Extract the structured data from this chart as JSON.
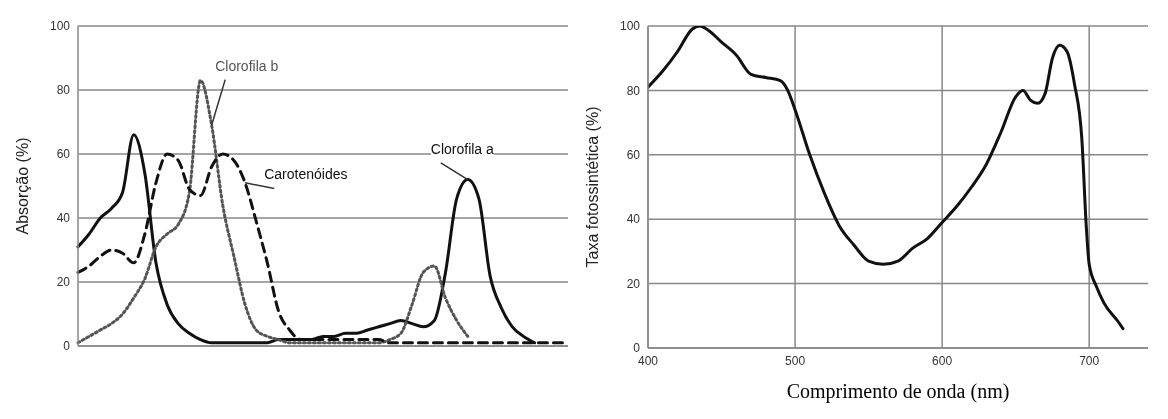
{
  "chart_data": [
    {
      "type": "line",
      "ylabel": "Absorção (%)",
      "categories": [
        null,
        null,
        null,
        null,
        null,
        null,
        null,
        null,
        null,
        null,
        null,
        null,
        null,
        null,
        null,
        null,
        null,
        null,
        null,
        null,
        null,
        null,
        null,
        null,
        null,
        null,
        null,
        null,
        null,
        null,
        null,
        null,
        null,
        null,
        null,
        null,
        null,
        null,
        null,
        null,
        null,
        null,
        null,
        null,
        null
      ],
      "ylim": [
        0,
        100
      ],
      "yticks": [
        0,
        20,
        40,
        60,
        80,
        100
      ],
      "grid": "y",
      "marker": "none",
      "series": [
        {
          "name": "Clorofila a",
          "color": "#111111",
          "line_style": "solid",
          "values": [
            31,
            35,
            40,
            43,
            48,
            66,
            54,
            26,
            13,
            7,
            4,
            2,
            1,
            1,
            1,
            1,
            1,
            1,
            2,
            2,
            2,
            2,
            3,
            3,
            4,
            4,
            5,
            6,
            7,
            8,
            7,
            6,
            8,
            23,
            46,
            52,
            46,
            22,
            12,
            6,
            3,
            1,
            null,
            null,
            null
          ]
        },
        {
          "name": "Clorofila b",
          "color": "#555555",
          "line_style": "dotted",
          "values": [
            1,
            3,
            5,
            7,
            10,
            15,
            21,
            31,
            35,
            38,
            48,
            83,
            69,
            44,
            28,
            13,
            5,
            3,
            2,
            1,
            1,
            1,
            1,
            1,
            1,
            1,
            1,
            1,
            2,
            4,
            13,
            23,
            25,
            15,
            8,
            3,
            null,
            null,
            null,
            null,
            null,
            null,
            null,
            null,
            null
          ]
        },
        {
          "name": "Carotenóides",
          "color": "#111111",
          "line_style": "dashed",
          "values": [
            23,
            25,
            28,
            30,
            29,
            26,
            35,
            51,
            60,
            58,
            49,
            47,
            56,
            60,
            58,
            51,
            39,
            26,
            11,
            5,
            2,
            2,
            2,
            2,
            2,
            2,
            2,
            2,
            1,
            1,
            1,
            1,
            1,
            1,
            1,
            1,
            1,
            1,
            1,
            1,
            1,
            1,
            1,
            1,
            1
          ]
        }
      ]
    },
    {
      "type": "line",
      "ylabel": "Taxa fotossintética (%)",
      "xlabel": "Comprimento de onda (nm)",
      "xlim": [
        400,
        740
      ],
      "xticks": [
        400,
        500,
        600,
        700
      ],
      "ylim": [
        0,
        100
      ],
      "yticks": [
        0,
        20,
        40,
        60,
        80,
        100
      ],
      "grid": true,
      "marker": "none",
      "line_style": "solid",
      "x": [
        400,
        410,
        420,
        430,
        435,
        440,
        450,
        460,
        470,
        480,
        490,
        495,
        500,
        510,
        520,
        530,
        540,
        550,
        560,
        570,
        580,
        590,
        600,
        610,
        620,
        630,
        640,
        650,
        655,
        660,
        665,
        670,
        675,
        680,
        685,
        690,
        695,
        698,
        700,
        705,
        710,
        720,
        723
      ],
      "series": [
        {
          "color": "#111111",
          "values": [
            81,
            86,
            92,
            99,
            100,
            99,
            95,
            91,
            85,
            84,
            83,
            80,
            74,
            60,
            48,
            38,
            32,
            27,
            26,
            27,
            31,
            34,
            39,
            44,
            50,
            57,
            67,
            78,
            80,
            77,
            76,
            79,
            90,
            94,
            92,
            82,
            65,
            38,
            26,
            19,
            14,
            8,
            6
          ]
        }
      ]
    }
  ]
}
